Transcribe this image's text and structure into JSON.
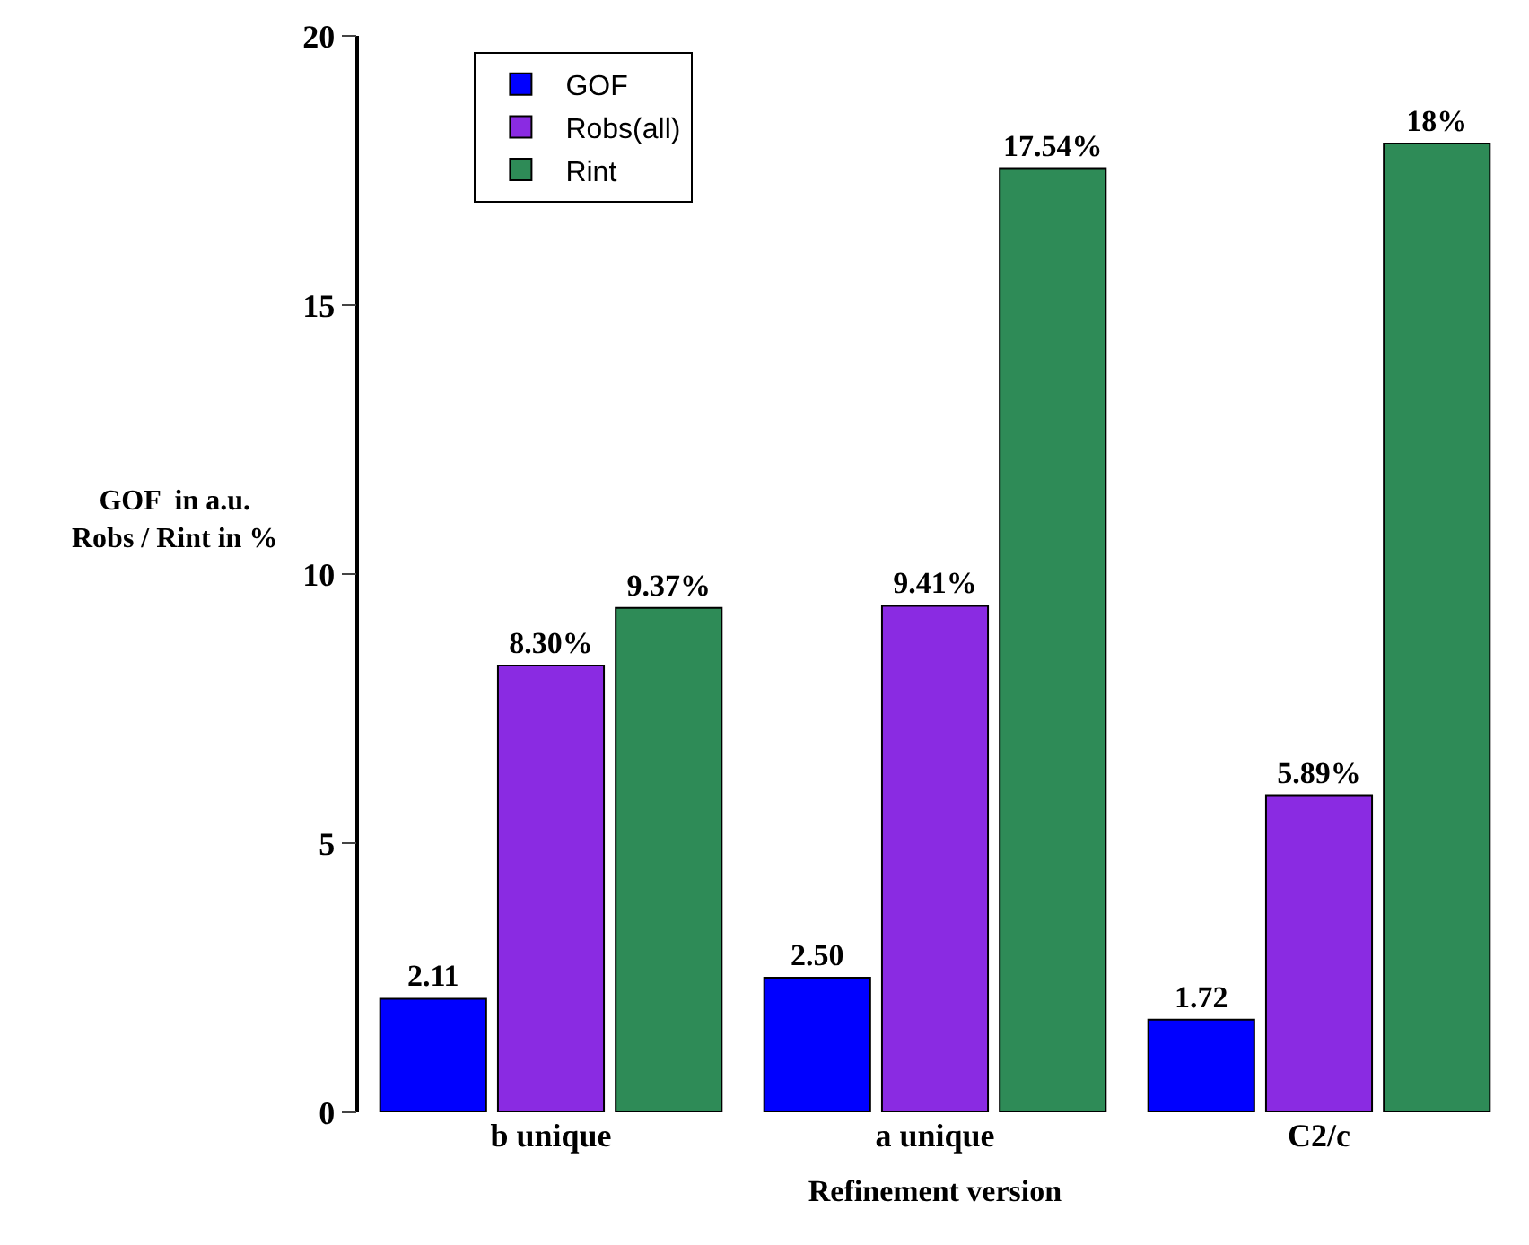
{
  "chart_data": {
    "type": "bar",
    "xlabel": "Refinement version",
    "ylabel": "GOF  in a.u.\nRobs / Rint in %",
    "categories": [
      "b unique",
      "a unique",
      "C2/c"
    ],
    "series": [
      {
        "name": "GOF",
        "color": "#0000ff",
        "values": [
          2.11,
          2.5,
          1.72
        ],
        "value_labels": [
          "2.11",
          "2.50",
          "1.72"
        ]
      },
      {
        "name": "Robs(all)",
        "color": "#8a2be2",
        "values": [
          8.3,
          9.41,
          5.89
        ],
        "value_labels": [
          "8.30%",
          "9.41%",
          "5.89%"
        ]
      },
      {
        "name": "Rint",
        "color": "#2e8b57",
        "values": [
          9.37,
          17.54,
          18
        ],
        "value_labels": [
          "9.37%",
          "17.54%",
          "18%"
        ]
      }
    ],
    "ylim": [
      0,
      20
    ],
    "yticks": [
      0,
      5,
      10,
      15,
      20
    ],
    "legend": "top left"
  }
}
